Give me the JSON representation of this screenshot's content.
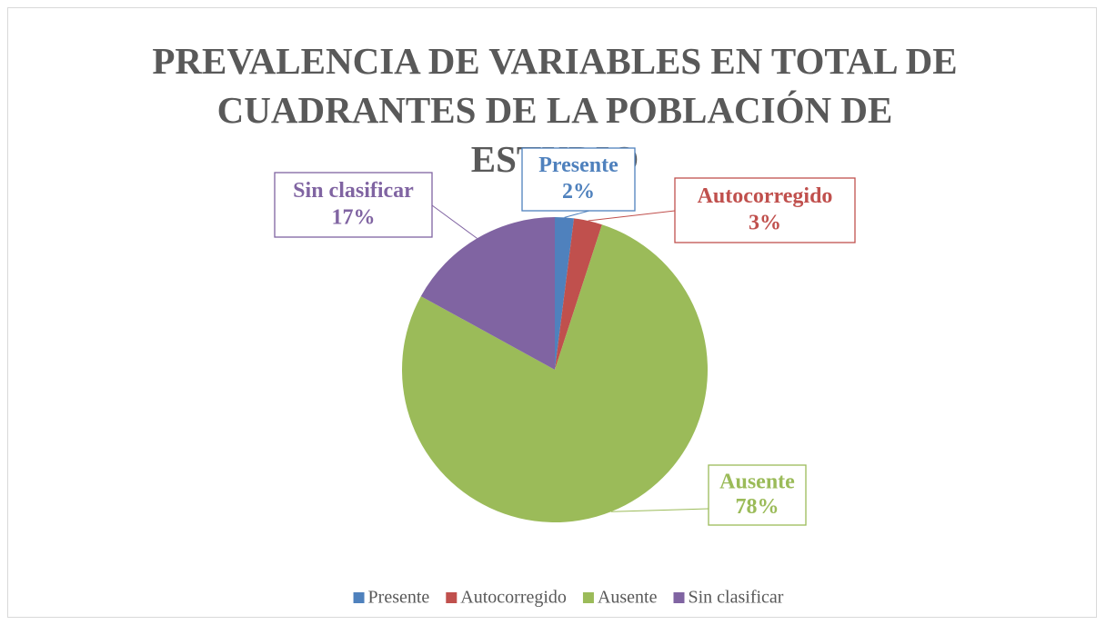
{
  "chart_data": {
    "type": "pie",
    "title": "PREVALENCIA DE VARIABLES EN TOTAL DE CUADRANTES DE LA POBLACIÓN DE ESTUDIO",
    "categories": [
      "Presente",
      "Autocorregido",
      "Ausente",
      "Sin clasificar"
    ],
    "values": [
      2,
      3,
      78,
      17
    ],
    "value_labels": [
      "2%",
      "3%",
      "78%",
      "17%"
    ],
    "colors": [
      "#4f81bd",
      "#c0504d",
      "#9bbb59",
      "#8064a2"
    ],
    "legend": "bottom"
  }
}
